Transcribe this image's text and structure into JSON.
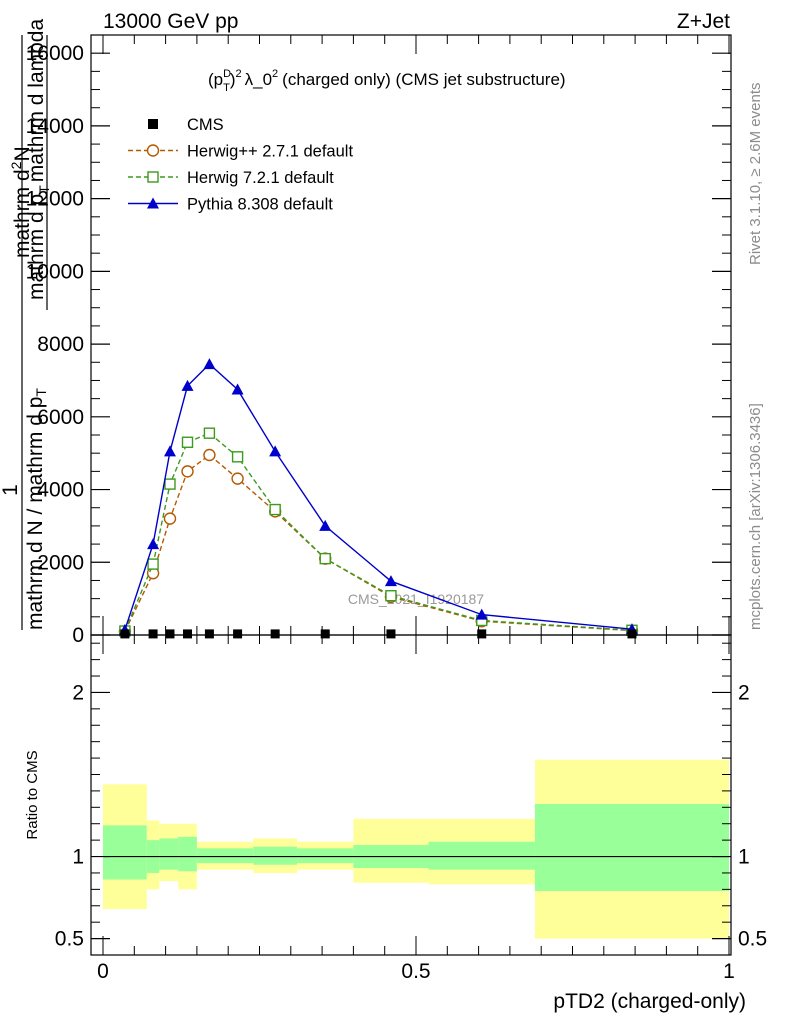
{
  "header": {
    "energy": "13000 GeV pp",
    "process": "Z+Jet",
    "plot_title_prefix": "(p",
    "plot_title_sup": "D",
    "plot_title_sub": "T",
    "plot_title_suffix": "λ_0",
    "plot_title_rest": "(charged only) (CMS jet substructure)",
    "title_sup2": "2"
  },
  "side": {
    "rivet": "Rivet 3.1.10, ≥ 2.6M events",
    "mcplots": "mcplots.cern.ch [arXiv:1306.3436]"
  },
  "watermark": "CMS_2021_I1920187",
  "ylabel": {
    "one": "1",
    "num_main": "mathrm d",
    "num_sup": "2",
    "num_tail": "N",
    "den_main": "mathrm d N",
    "den_mid": "mathrm d p",
    "den_sub": "T",
    "den_tail": "mathrm d lambda",
    "den_outer": "mathrm d N / mathrm d p"
  },
  "xlabel": "pTD2 (charged-only)",
  "ratio_ylabel": "Ratio to CMS",
  "legend": [
    {
      "name": "CMS",
      "color": "#000000",
      "marker": "square-filled"
    },
    {
      "name": "Herwig++ 2.7.1 default",
      "color": "#b45a00",
      "marker": "circle-open"
    },
    {
      "name": "Herwig 7.2.1 default",
      "color": "#3c9a1e",
      "marker": "square-open"
    },
    {
      "name": "Pythia 8.308 default",
      "color": "#0000cc",
      "marker": "triangle-filled"
    }
  ],
  "chart_data": {
    "type": "line",
    "xlim": [
      0,
      1
    ],
    "ylim": [
      0,
      16500
    ],
    "x_ticks": [
      0,
      0.5,
      1
    ],
    "x_tick_labels": [
      "0",
      "0.5",
      "1"
    ],
    "y_ticks": [
      0,
      2000,
      4000,
      6000,
      8000,
      10000,
      12000,
      14000,
      16000
    ],
    "y_tick_labels": [
      "0",
      "2000",
      "4000",
      "6000",
      "8000",
      "10000",
      "12000",
      "14000",
      "16000"
    ],
    "x": [
      0.035,
      0.08,
      0.107,
      0.135,
      0.17,
      0.215,
      0.275,
      0.355,
      0.46,
      0.605,
      0.845
    ],
    "series": [
      {
        "name": "CMS",
        "values": [
          30,
          30,
          30,
          30,
          30,
          30,
          30,
          30,
          30,
          30,
          30
        ]
      },
      {
        "name": "Herwig++ 2.7.1 default",
        "values": [
          100,
          1700,
          3200,
          4500,
          4950,
          4300,
          3400,
          2100,
          1050,
          380,
          120
        ]
      },
      {
        "name": "Herwig 7.2.1 default",
        "values": [
          110,
          1950,
          4150,
          5300,
          5550,
          4900,
          3450,
          2100,
          1080,
          400,
          130
        ]
      },
      {
        "name": "Pythia 8.308 default",
        "values": [
          140,
          2500,
          5050,
          6850,
          7450,
          6750,
          5050,
          3000,
          1480,
          560,
          160
        ]
      }
    ],
    "ratio": {
      "ylim": [
        0.4,
        2.35
      ],
      "y_ticks": [
        0.5,
        1,
        2
      ],
      "y_tick_labels": [
        "0.5",
        "1",
        "2"
      ],
      "bins": [
        0,
        0.07,
        0.09,
        0.12,
        0.15,
        0.24,
        0.31,
        0.4,
        0.52,
        0.69,
        1.0
      ],
      "inner_lo": [
        0.86,
        0.9,
        0.92,
        0.91,
        0.96,
        0.95,
        0.96,
        0.93,
        0.92,
        0.79
      ],
      "inner_hi": [
        1.19,
        1.1,
        1.11,
        1.12,
        1.05,
        1.06,
        1.05,
        1.07,
        1.09,
        1.32
      ],
      "outer_lo": [
        0.68,
        0.8,
        0.85,
        0.8,
        0.92,
        0.9,
        0.92,
        0.84,
        0.83,
        0.5
      ],
      "outer_hi": [
        1.44,
        1.22,
        1.2,
        1.2,
        1.09,
        1.11,
        1.09,
        1.23,
        1.23,
        1.59
      ]
    }
  }
}
